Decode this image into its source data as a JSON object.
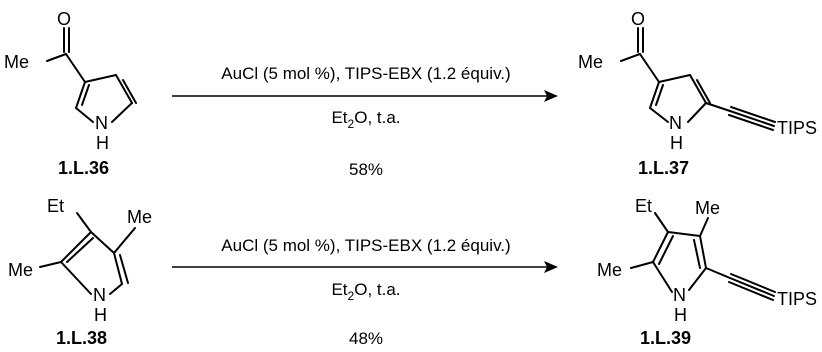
{
  "reactions": [
    {
      "reactant": {
        "label": "1.L.36",
        "atoms": {
          "substituent": "Me",
          "carbonyl_o": "O",
          "nh_n": "N",
          "nh_h": "H"
        }
      },
      "conditions": {
        "reagents": "AuCl (5 mol %), TIPS-EBX (1.2 équiv.)",
        "solvent_main": "Et",
        "solvent_sub": "2",
        "solvent_tail": "O, t.a.",
        "yield": "58%"
      },
      "product": {
        "label": "1.L.37",
        "atoms": {
          "substituent": "Me",
          "carbonyl_o": "O",
          "nh_n": "N",
          "nh_h": "H",
          "silyl": "TIPS"
        }
      }
    },
    {
      "reactant": {
        "label": "1.L.38",
        "atoms": {
          "ethyl": "Et",
          "methyl_top": "Me",
          "methyl_left": "Me",
          "nh_n": "N",
          "nh_h": "H"
        }
      },
      "conditions": {
        "reagents": "AuCl (5 mol %), TIPS-EBX (1.2 équiv.)",
        "solvent_main": "Et",
        "solvent_sub": "2",
        "solvent_tail": "O, t.a.",
        "yield": "48%"
      },
      "product": {
        "label": "1.L.39",
        "atoms": {
          "ethyl": "Et",
          "methyl_top": "Me",
          "methyl_left": "Me",
          "nh_n": "N",
          "nh_h": "H",
          "silyl": "TIPS"
        }
      }
    }
  ]
}
